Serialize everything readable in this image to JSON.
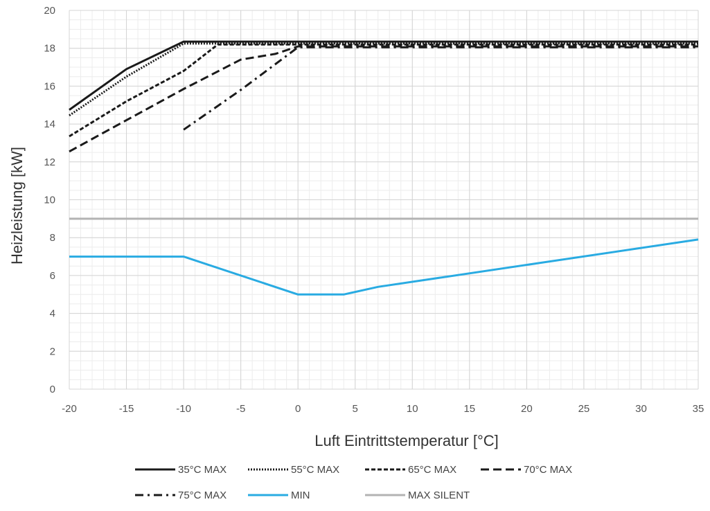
{
  "chart_data": {
    "type": "line",
    "title": "",
    "xlabel": "Luft Eintrittstemperatur [°C]",
    "ylabel": "Heizleistung [kW]",
    "xlim": [
      -20,
      35
    ],
    "ylim": [
      0,
      20
    ],
    "x_ticks": [
      -20,
      -15,
      -10,
      -5,
      0,
      5,
      10,
      15,
      20,
      25,
      30,
      35
    ],
    "y_ticks": [
      0,
      2,
      4,
      6,
      8,
      10,
      12,
      14,
      16,
      18,
      20
    ],
    "x_tick_labels": [
      "-20",
      "-15",
      "-10",
      "-5",
      "0",
      "5",
      "10",
      "15",
      "20",
      "25",
      "30",
      "35"
    ],
    "y_tick_labels": [
      "0",
      "2",
      "4",
      "6",
      "8",
      "10",
      "12",
      "14",
      "16",
      "18",
      "20"
    ],
    "minor_x_step": 1,
    "minor_y_step": 0.5,
    "grid": true,
    "legend_position": "bottom",
    "series": [
      {
        "name": "35°C MAX",
        "color": "#1a1a1a",
        "dash": "solid",
        "x": [
          -20,
          -15,
          -10,
          35
        ],
        "y": [
          14.75,
          16.9,
          18.35,
          18.35
        ]
      },
      {
        "name": "55°C MAX",
        "color": "#1a1a1a",
        "dash": "dotted",
        "x": [
          -20,
          -15,
          -10,
          35
        ],
        "y": [
          14.45,
          16.5,
          18.25,
          18.25
        ]
      },
      {
        "name": "65°C MAX",
        "color": "#1a1a1a",
        "dash": "dashed-short",
        "x": [
          -20,
          -15,
          -10,
          -7,
          35
        ],
        "y": [
          13.35,
          15.2,
          16.8,
          18.2,
          18.2
        ]
      },
      {
        "name": "70°C MAX",
        "color": "#1a1a1a",
        "dash": "dashed-long",
        "x": [
          -20,
          -15,
          -10,
          -5,
          -2,
          0,
          35
        ],
        "y": [
          12.55,
          14.2,
          15.85,
          17.4,
          17.7,
          18.1,
          18.1
        ]
      },
      {
        "name": "75°C MAX",
        "color": "#1a1a1a",
        "dash": "dash-dot",
        "x": [
          -10,
          -5,
          0,
          35
        ],
        "y": [
          13.7,
          15.8,
          18.05,
          18.05
        ]
      },
      {
        "name": "MIN",
        "color": "#29abe2",
        "dash": "solid",
        "x": [
          -20,
          -10,
          0,
          4,
          7,
          35
        ],
        "y": [
          7.0,
          7.0,
          5.0,
          5.0,
          5.4,
          7.9
        ]
      },
      {
        "name": "MAX SILENT",
        "color": "#b3b3b3",
        "dash": "solid",
        "x": [
          -20,
          35
        ],
        "y": [
          9.0,
          9.0
        ]
      }
    ]
  }
}
